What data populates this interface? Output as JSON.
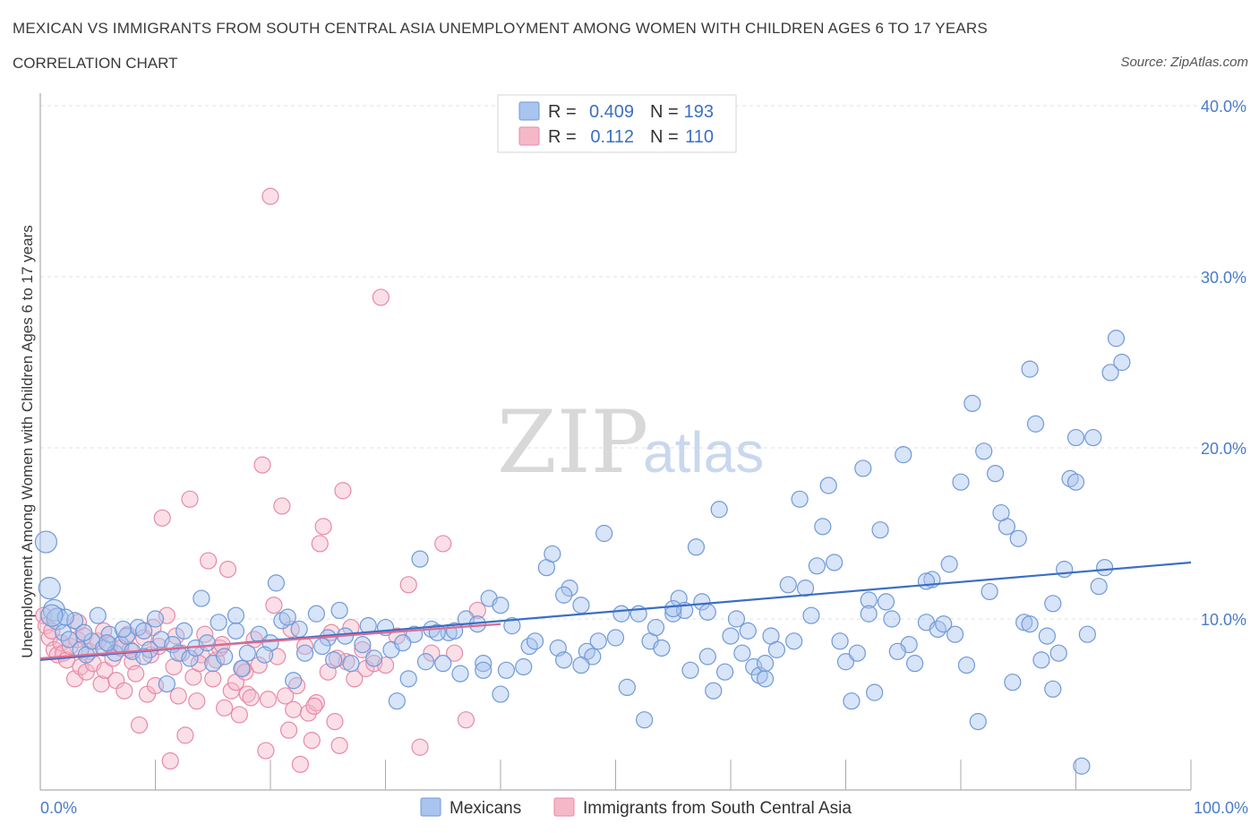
{
  "title": "MEXICAN VS IMMIGRANTS FROM SOUTH CENTRAL ASIA UNEMPLOYMENT AMONG WOMEN WITH CHILDREN AGES 6 TO 17 YEARS",
  "subtitle": "CORRELATION CHART",
  "source": "Source: ZipAtlas.com",
  "watermark": {
    "zip": "ZIP",
    "atlas": "atlas"
  },
  "colors": {
    "blue_fill": "#a9c4ee",
    "blue_stroke": "#6f9ad8",
    "blue_line": "#3b6fc4",
    "pink_fill": "#f5b8c9",
    "pink_stroke": "#e88aa6",
    "pink_line": "#e06a90",
    "grid": "#e0e0e0",
    "axis_text": "#4a7cc9"
  },
  "legend": {
    "rows": [
      {
        "r_label": "R =",
        "r_value": "0.409",
        "n_label": "N =",
        "n_value": "193"
      },
      {
        "r_label": "R =",
        "r_value": "0.112",
        "n_label": "N =",
        "n_value": "110"
      }
    ]
  },
  "bottom_legend": {
    "series1": "Mexicans",
    "series2": "Immigrants from South Central Asia"
  },
  "chart_data": {
    "type": "scatter",
    "title": "MEXICAN VS IMMIGRANTS FROM SOUTH CENTRAL ASIA UNEMPLOYMENT AMONG WOMEN WITH CHILDREN AGES 6 TO 17 YEARS",
    "xlabel": "",
    "ylabel": "Unemployment Among Women with Children Ages 6 to 17 years",
    "xlim": [
      0,
      100
    ],
    "ylim": [
      0,
      40
    ],
    "x_tick_labels": [
      "0.0%",
      "100.0%"
    ],
    "y_ticks": [
      10,
      20,
      30,
      40
    ],
    "y_tick_labels": [
      "10.0%",
      "20.0%",
      "30.0%",
      "40.0%"
    ],
    "grid": true,
    "legend_position": "top-center",
    "series": [
      {
        "name": "Mexicans",
        "trend": {
          "x": [
            0,
            100
          ],
          "y": [
            7.6,
            13.3
          ]
        },
        "points": [
          [
            0.5,
            14.5
          ],
          [
            0.8,
            11.8
          ],
          [
            1.2,
            10.5
          ],
          [
            1.5,
            10.0
          ],
          [
            2,
            9.2
          ],
          [
            2.5,
            8.8
          ],
          [
            3,
            9.9
          ],
          [
            3.5,
            8.2
          ],
          [
            4,
            7.9
          ],
          [
            4.5,
            8.7
          ],
          [
            5,
            10.2
          ],
          [
            5.5,
            8.3
          ],
          [
            6,
            9.1
          ],
          [
            6.5,
            8.0
          ],
          [
            7,
            8.5
          ],
          [
            7.5,
            9.0
          ],
          [
            8,
            8.1
          ],
          [
            8.5,
            9.5
          ],
          [
            9,
            9.3
          ],
          [
            9.5,
            8.2
          ],
          [
            10,
            10.0
          ],
          [
            10.5,
            8.8
          ],
          [
            11,
            6.2
          ],
          [
            11.5,
            8.5
          ],
          [
            12,
            8.0
          ],
          [
            13,
            7.7
          ],
          [
            13.5,
            8.3
          ],
          [
            14,
            11.2
          ],
          [
            15,
            7.4
          ],
          [
            15.5,
            9.8
          ],
          [
            16,
            7.8
          ],
          [
            17,
            9.3
          ],
          [
            17.5,
            7.1
          ],
          [
            18,
            8.0
          ],
          [
            19,
            9.1
          ],
          [
            20,
            8.6
          ],
          [
            20.5,
            12.1
          ],
          [
            21,
            9.9
          ],
          [
            22,
            6.4
          ],
          [
            22.5,
            9.4
          ],
          [
            23,
            8.0
          ],
          [
            24,
            10.3
          ],
          [
            25,
            8.9
          ],
          [
            25.5,
            7.6
          ],
          [
            26,
            10.5
          ],
          [
            27,
            7.4
          ],
          [
            28,
            8.5
          ],
          [
            28.5,
            9.6
          ],
          [
            29,
            7.7
          ],
          [
            30,
            9.5
          ],
          [
            30.5,
            8.2
          ],
          [
            31,
            5.2
          ],
          [
            32,
            6.5
          ],
          [
            32.5,
            9.1
          ],
          [
            33,
            13.5
          ],
          [
            34,
            9.4
          ],
          [
            35,
            7.4
          ],
          [
            35.5,
            9.2
          ],
          [
            36,
            9.3
          ],
          [
            37,
            10.0
          ],
          [
            38,
            9.7
          ],
          [
            38.5,
            7.4
          ],
          [
            39,
            11.2
          ],
          [
            40,
            10.8
          ],
          [
            40.5,
            7.0
          ],
          [
            41,
            9.6
          ],
          [
            42,
            7.2
          ],
          [
            42.5,
            8.4
          ],
          [
            43,
            8.7
          ],
          [
            44,
            13.0
          ],
          [
            44.5,
            13.8
          ],
          [
            45,
            8.3
          ],
          [
            45.5,
            7.6
          ],
          [
            46,
            11.8
          ],
          [
            47,
            10.8
          ],
          [
            47.5,
            8.1
          ],
          [
            48,
            7.8
          ],
          [
            48.5,
            8.7
          ],
          [
            49,
            15.0
          ],
          [
            50,
            8.9
          ],
          [
            51,
            6.0
          ],
          [
            52,
            10.3
          ],
          [
            52.5,
            4.1
          ],
          [
            53,
            8.7
          ],
          [
            54,
            8.3
          ],
          [
            55,
            10.3
          ],
          [
            55.5,
            11.2
          ],
          [
            56,
            10.5
          ],
          [
            56.5,
            7.0
          ],
          [
            57,
            14.2
          ],
          [
            57.5,
            11.0
          ],
          [
            58,
            10.4
          ],
          [
            58.5,
            5.8
          ],
          [
            59,
            16.4
          ],
          [
            59.5,
            6.9
          ],
          [
            60,
            9.0
          ],
          [
            61,
            8.0
          ],
          [
            61.5,
            9.3
          ],
          [
            62,
            7.2
          ],
          [
            62.5,
            6.7
          ],
          [
            63,
            7.4
          ],
          [
            63.5,
            9.0
          ],
          [
            64,
            8.2
          ],
          [
            65,
            12.0
          ],
          [
            65.5,
            8.7
          ],
          [
            66,
            17.0
          ],
          [
            67,
            10.2
          ],
          [
            67.5,
            13.1
          ],
          [
            68,
            15.4
          ],
          [
            68.5,
            17.8
          ],
          [
            69,
            13.3
          ],
          [
            70,
            7.5
          ],
          [
            70.5,
            5.2
          ],
          [
            71,
            8.0
          ],
          [
            71.5,
            18.8
          ],
          [
            72,
            11.1
          ],
          [
            72.5,
            5.7
          ],
          [
            73,
            15.2
          ],
          [
            73.5,
            11.0
          ],
          [
            74,
            10.0
          ],
          [
            75,
            19.6
          ],
          [
            75.5,
            8.5
          ],
          [
            76,
            7.4
          ],
          [
            77,
            9.8
          ],
          [
            77.5,
            12.3
          ],
          [
            78,
            9.4
          ],
          [
            78.5,
            9.7
          ],
          [
            79,
            13.2
          ],
          [
            80,
            18.0
          ],
          [
            80.5,
            7.3
          ],
          [
            81,
            22.6
          ],
          [
            81.5,
            4.0
          ],
          [
            82,
            19.8
          ],
          [
            82.5,
            11.6
          ],
          [
            83,
            18.5
          ],
          [
            84,
            15.4
          ],
          [
            84.5,
            6.3
          ],
          [
            85,
            14.7
          ],
          [
            85.5,
            9.8
          ],
          [
            86,
            24.6
          ],
          [
            86.5,
            21.4
          ],
          [
            87,
            7.6
          ],
          [
            87.5,
            9.0
          ],
          [
            88,
            10.9
          ],
          [
            88.5,
            8.0
          ],
          [
            89,
            12.9
          ],
          [
            89.5,
            18.2
          ],
          [
            90,
            20.6
          ],
          [
            90.5,
            1.4
          ],
          [
            91,
            9.1
          ],
          [
            91.5,
            20.6
          ],
          [
            92,
            11.9
          ],
          [
            93,
            24.4
          ],
          [
            93.5,
            26.4
          ],
          [
            94,
            25.0
          ],
          [
            55,
            10.6
          ],
          [
            60.5,
            10.0
          ],
          [
            58,
            7.8
          ],
          [
            63,
            6.5
          ],
          [
            66.5,
            11.8
          ],
          [
            34.5,
            9.2
          ],
          [
            36.5,
            6.8
          ],
          [
            33.5,
            7.5
          ],
          [
            31.5,
            8.6
          ],
          [
            38.5,
            7.0
          ],
          [
            26.5,
            9.0
          ],
          [
            24.5,
            8.4
          ],
          [
            21.5,
            10.1
          ],
          [
            19.5,
            7.9
          ],
          [
            17,
            10.2
          ],
          [
            14.5,
            8.6
          ],
          [
            12.5,
            9.3
          ],
          [
            9,
            7.8
          ],
          [
            7.2,
            9.4
          ],
          [
            5.8,
            8.6
          ],
          [
            3.8,
            9.2
          ],
          [
            2.2,
            10.1
          ],
          [
            1,
            10.2
          ],
          [
            47,
            7.3
          ],
          [
            50.5,
            10.3
          ],
          [
            53.5,
            9.5
          ],
          [
            69.5,
            8.7
          ],
          [
            72,
            10.3
          ],
          [
            74.5,
            8.1
          ],
          [
            77,
            12.2
          ],
          [
            79.5,
            9.1
          ],
          [
            83.5,
            16.2
          ],
          [
            86,
            9.7
          ],
          [
            88,
            5.9
          ],
          [
            90,
            18.0
          ],
          [
            92.5,
            13.0
          ],
          [
            45.5,
            11.4
          ],
          [
            40,
            5.6
          ]
        ]
      },
      {
        "name": "Immigrants from South Central Asia",
        "trend": {
          "x": [
            0,
            40
          ],
          "y": [
            7.7,
            9.7
          ]
        },
        "points": [
          [
            0.3,
            10.2
          ],
          [
            0.5,
            9.6
          ],
          [
            0.8,
            8.9
          ],
          [
            1,
            9.3
          ],
          [
            1.2,
            8.2
          ],
          [
            1.5,
            7.9
          ],
          [
            1.8,
            8.6
          ],
          [
            2,
            8.0
          ],
          [
            2.3,
            7.6
          ],
          [
            2.6,
            8.4
          ],
          [
            3,
            6.5
          ],
          [
            3.2,
            8.8
          ],
          [
            3.5,
            7.2
          ],
          [
            3.8,
            9.0
          ],
          [
            4,
            6.9
          ],
          [
            4.3,
            8.1
          ],
          [
            4.6,
            7.4
          ],
          [
            5,
            8.7
          ],
          [
            5.3,
            6.2
          ],
          [
            5.6,
            7.0
          ],
          [
            6,
            8.5
          ],
          [
            6.3,
            7.7
          ],
          [
            6.6,
            6.4
          ],
          [
            7,
            8.3
          ],
          [
            7.3,
            5.8
          ],
          [
            7.6,
            9.1
          ],
          [
            8,
            7.5
          ],
          [
            8.3,
            6.8
          ],
          [
            8.6,
            3.8
          ],
          [
            9,
            8.9
          ],
          [
            9.3,
            5.6
          ],
          [
            9.6,
            7.9
          ],
          [
            10,
            6.1
          ],
          [
            10.3,
            8.4
          ],
          [
            10.6,
            15.9
          ],
          [
            11,
            10.2
          ],
          [
            11.3,
            1.7
          ],
          [
            11.6,
            7.2
          ],
          [
            12,
            5.5
          ],
          [
            12.3,
            8.0
          ],
          [
            12.6,
            3.2
          ],
          [
            13,
            17.0
          ],
          [
            13.3,
            6.6
          ],
          [
            13.6,
            5.2
          ],
          [
            14,
            7.9
          ],
          [
            14.3,
            9.1
          ],
          [
            14.6,
            13.4
          ],
          [
            15,
            6.5
          ],
          [
            15.3,
            7.6
          ],
          [
            15.6,
            8.3
          ],
          [
            16,
            4.8
          ],
          [
            16.3,
            12.9
          ],
          [
            16.6,
            5.8
          ],
          [
            17,
            6.3
          ],
          [
            17.3,
            4.4
          ],
          [
            17.6,
            7.1
          ],
          [
            18,
            5.6
          ],
          [
            18.3,
            5.4
          ],
          [
            18.6,
            8.8
          ],
          [
            19,
            7.3
          ],
          [
            19.3,
            19.0
          ],
          [
            19.6,
            2.3
          ],
          [
            20,
            34.7
          ],
          [
            20.3,
            10.8
          ],
          [
            20.6,
            7.8
          ],
          [
            21,
            16.6
          ],
          [
            21.3,
            5.5
          ],
          [
            21.6,
            3.5
          ],
          [
            22,
            4.7
          ],
          [
            22.3,
            6.1
          ],
          [
            22.6,
            1.5
          ],
          [
            23,
            8.4
          ],
          [
            23.3,
            4.5
          ],
          [
            23.6,
            2.9
          ],
          [
            24,
            5.1
          ],
          [
            24.3,
            14.4
          ],
          [
            24.6,
            15.4
          ],
          [
            25,
            6.9
          ],
          [
            25.3,
            9.2
          ],
          [
            25.6,
            4.0
          ],
          [
            26,
            2.6
          ],
          [
            26.3,
            17.5
          ],
          [
            26.6,
            7.5
          ],
          [
            27,
            9.5
          ],
          [
            27.3,
            6.5
          ],
          [
            28,
            8.2
          ],
          [
            28.3,
            7.1
          ],
          [
            29,
            7.4
          ],
          [
            29.6,
            28.8
          ],
          [
            30,
            7.3
          ],
          [
            31,
            9.0
          ],
          [
            32,
            12.0
          ],
          [
            33,
            2.5
          ],
          [
            34,
            8.0
          ],
          [
            35,
            14.4
          ],
          [
            36,
            8.0
          ],
          [
            37,
            4.1
          ],
          [
            38,
            10.5
          ],
          [
            5.5,
            9.3
          ],
          [
            3.3,
            9.8
          ],
          [
            7.8,
            8.2
          ],
          [
            9.8,
            9.5
          ],
          [
            11.8,
            9.0
          ],
          [
            13.8,
            7.4
          ],
          [
            15.8,
            8.5
          ],
          [
            17.8,
            6.9
          ],
          [
            19.8,
            5.3
          ],
          [
            21.8,
            9.4
          ],
          [
            23.8,
            4.9
          ],
          [
            25.8,
            7.7
          ]
        ]
      }
    ]
  }
}
